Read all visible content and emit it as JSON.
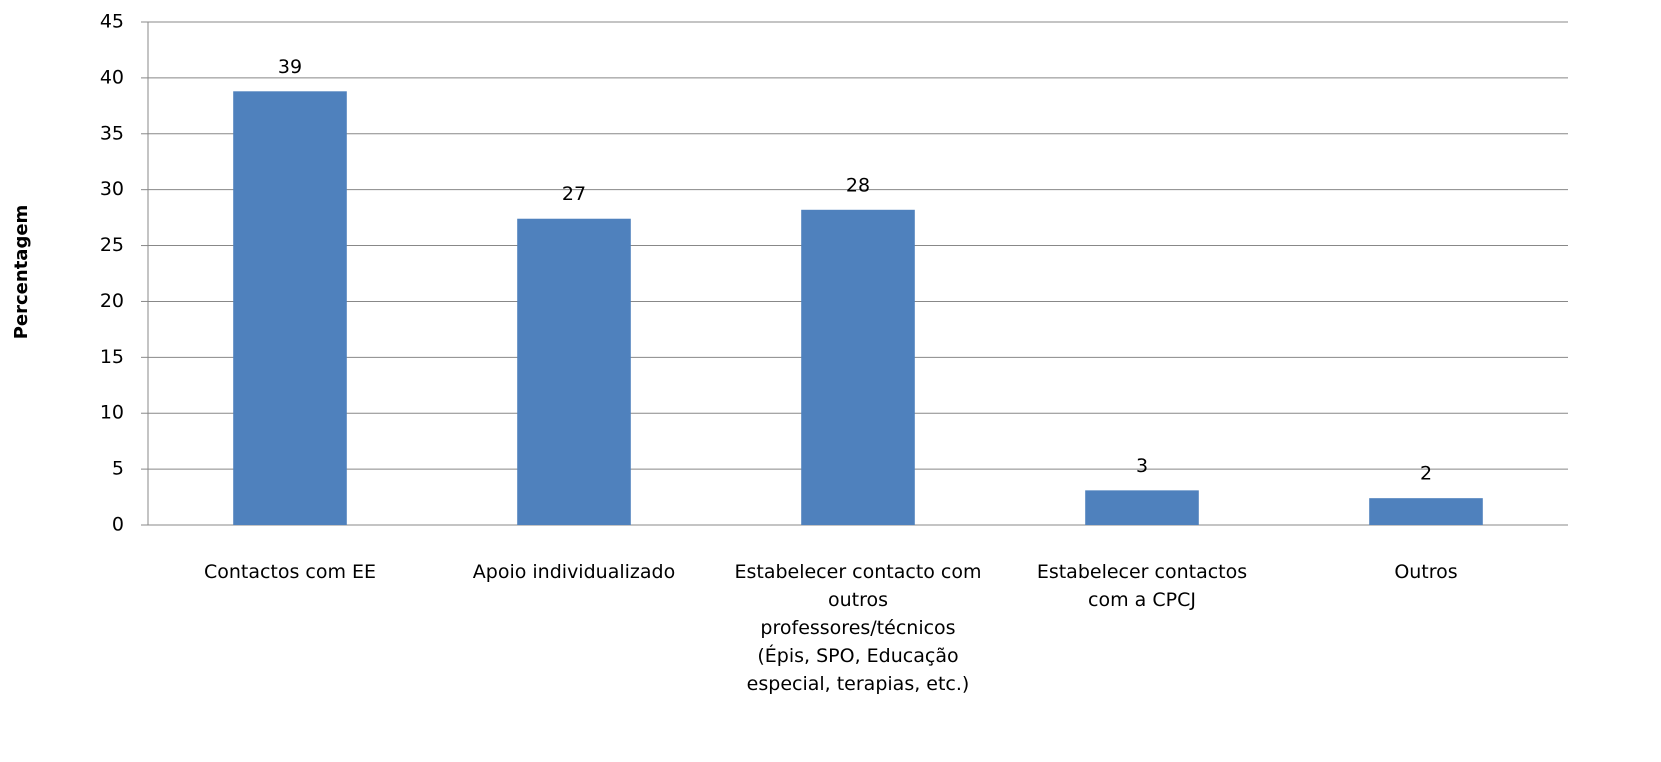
{
  "chart_data": {
    "type": "bar",
    "y_label": "Percentagem",
    "categories": [
      "Contactos com EE",
      "Apoio individualizado",
      "Estabelecer contacto com outros professores/técnicos (Épis, SPO, Educação especial, terapias, etc.)",
      "Estabelecer contactos com a CPCJ",
      "Outros"
    ],
    "values": [
      38.8,
      27.4,
      28.2,
      3.1,
      2.4
    ],
    "value_labels": [
      "39",
      "27",
      "28",
      "3",
      "2"
    ],
    "color": "#4f81bd",
    "ylim": [
      0,
      45
    ],
    "yticks": [
      0,
      5,
      10,
      15,
      20,
      25,
      30,
      35,
      40,
      45
    ],
    "grid": true
  }
}
